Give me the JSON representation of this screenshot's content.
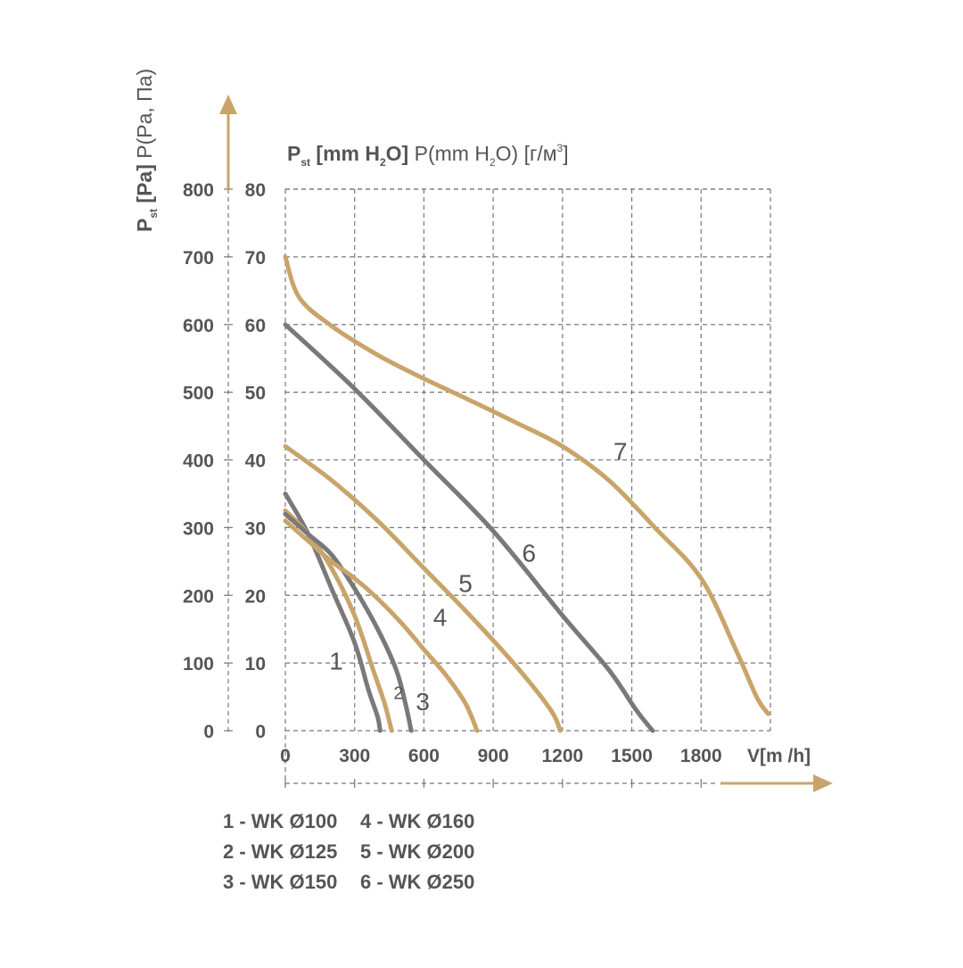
{
  "chart_data": {
    "type": "line",
    "y_axis_left": {
      "label_parts": [
        "P",
        "st",
        " [Pa]",
        " P(Pa, Па)"
      ],
      "ticks": [
        0,
        100,
        200,
        300,
        400,
        500,
        600,
        700,
        800
      ],
      "range": [
        0,
        800
      ]
    },
    "y_axis_right": {
      "title_parts": [
        "P",
        "st",
        " [mm H",
        "2",
        "O]",
        " P(mm H",
        "2",
        "O) [г/м",
        "3",
        "]"
      ],
      "ticks": [
        0,
        10,
        20,
        30,
        40,
        50,
        60,
        70,
        80
      ],
      "range": [
        0,
        80
      ]
    },
    "x_axis": {
      "label_parts": [
        "V[m",
        " /h]"
      ],
      "ticks": [
        0,
        300,
        600,
        900,
        1200,
        1500,
        1800
      ],
      "range": [
        0,
        2100
      ]
    },
    "grid": true,
    "series": [
      {
        "label": "1",
        "color": "#7a7878",
        "points": [
          [
            0,
            350
          ],
          [
            100,
            290
          ],
          [
            200,
            210
          ],
          [
            300,
            130
          ],
          [
            360,
            60
          ],
          [
            400,
            20
          ],
          [
            410,
            0
          ]
        ]
      },
      {
        "label": "2",
        "color": "#c9a46a",
        "points": [
          [
            0,
            325
          ],
          [
            100,
            290
          ],
          [
            200,
            240
          ],
          [
            300,
            170
          ],
          [
            380,
            90
          ],
          [
            430,
            40
          ],
          [
            460,
            0
          ]
        ]
      },
      {
        "label": "3",
        "color": "#7a7878",
        "points": [
          [
            0,
            320
          ],
          [
            100,
            290
          ],
          [
            200,
            260
          ],
          [
            300,
            210
          ],
          [
            400,
            150
          ],
          [
            480,
            90
          ],
          [
            520,
            40
          ],
          [
            545,
            0
          ]
        ]
      },
      {
        "label": "4",
        "color": "#c9a46a",
        "points": [
          [
            0,
            310
          ],
          [
            100,
            280
          ],
          [
            200,
            250
          ],
          [
            300,
            225
          ],
          [
            400,
            195
          ],
          [
            500,
            160
          ],
          [
            600,
            120
          ],
          [
            700,
            80
          ],
          [
            780,
            40
          ],
          [
            830,
            0
          ]
        ]
      },
      {
        "label": "5",
        "color": "#c9a46a",
        "points": [
          [
            0,
            420
          ],
          [
            200,
            370
          ],
          [
            400,
            310
          ],
          [
            600,
            240
          ],
          [
            800,
            170
          ],
          [
            1000,
            95
          ],
          [
            1150,
            30
          ],
          [
            1190,
            0
          ]
        ]
      },
      {
        "label": "6",
        "color": "#7a7878",
        "points": [
          [
            0,
            600
          ],
          [
            300,
            505
          ],
          [
            600,
            400
          ],
          [
            900,
            295
          ],
          [
            1200,
            170
          ],
          [
            1400,
            90
          ],
          [
            1520,
            30
          ],
          [
            1590,
            0
          ]
        ]
      },
      {
        "label": "7",
        "color": "#c9a46a",
        "points": [
          [
            0,
            700
          ],
          [
            60,
            640
          ],
          [
            200,
            598
          ],
          [
            400,
            555
          ],
          [
            600,
            520
          ],
          [
            800,
            488
          ],
          [
            1000,
            455
          ],
          [
            1200,
            420
          ],
          [
            1400,
            370
          ],
          [
            1600,
            300
          ],
          [
            1800,
            225
          ],
          [
            1950,
            120
          ],
          [
            2040,
            50
          ],
          [
            2090,
            25
          ]
        ]
      }
    ],
    "curve_labels": [
      {
        "text": "1",
        "x": 220,
        "y": 90
      },
      {
        "text": "2",
        "x": 490,
        "y": 47,
        "small": true
      },
      {
        "text": "3",
        "x": 595,
        "y": 30
      },
      {
        "text": "4",
        "x": 670,
        "y": 155
      },
      {
        "text": "5",
        "x": 780,
        "y": 205
      },
      {
        "text": "6",
        "x": 1055,
        "y": 250
      },
      {
        "text": "7",
        "x": 1450,
        "y": 400
      }
    ],
    "legend": [
      "1 - WK Ø100",
      "2 - WK Ø125",
      "3 - WK Ø150",
      "4 - WK Ø160",
      "5 - WK Ø200",
      "6 - WK Ø250"
    ],
    "colors": {
      "gold": "#c9a46a",
      "gray": "#7a7878",
      "text": "#555555",
      "grid": "#777777"
    }
  }
}
